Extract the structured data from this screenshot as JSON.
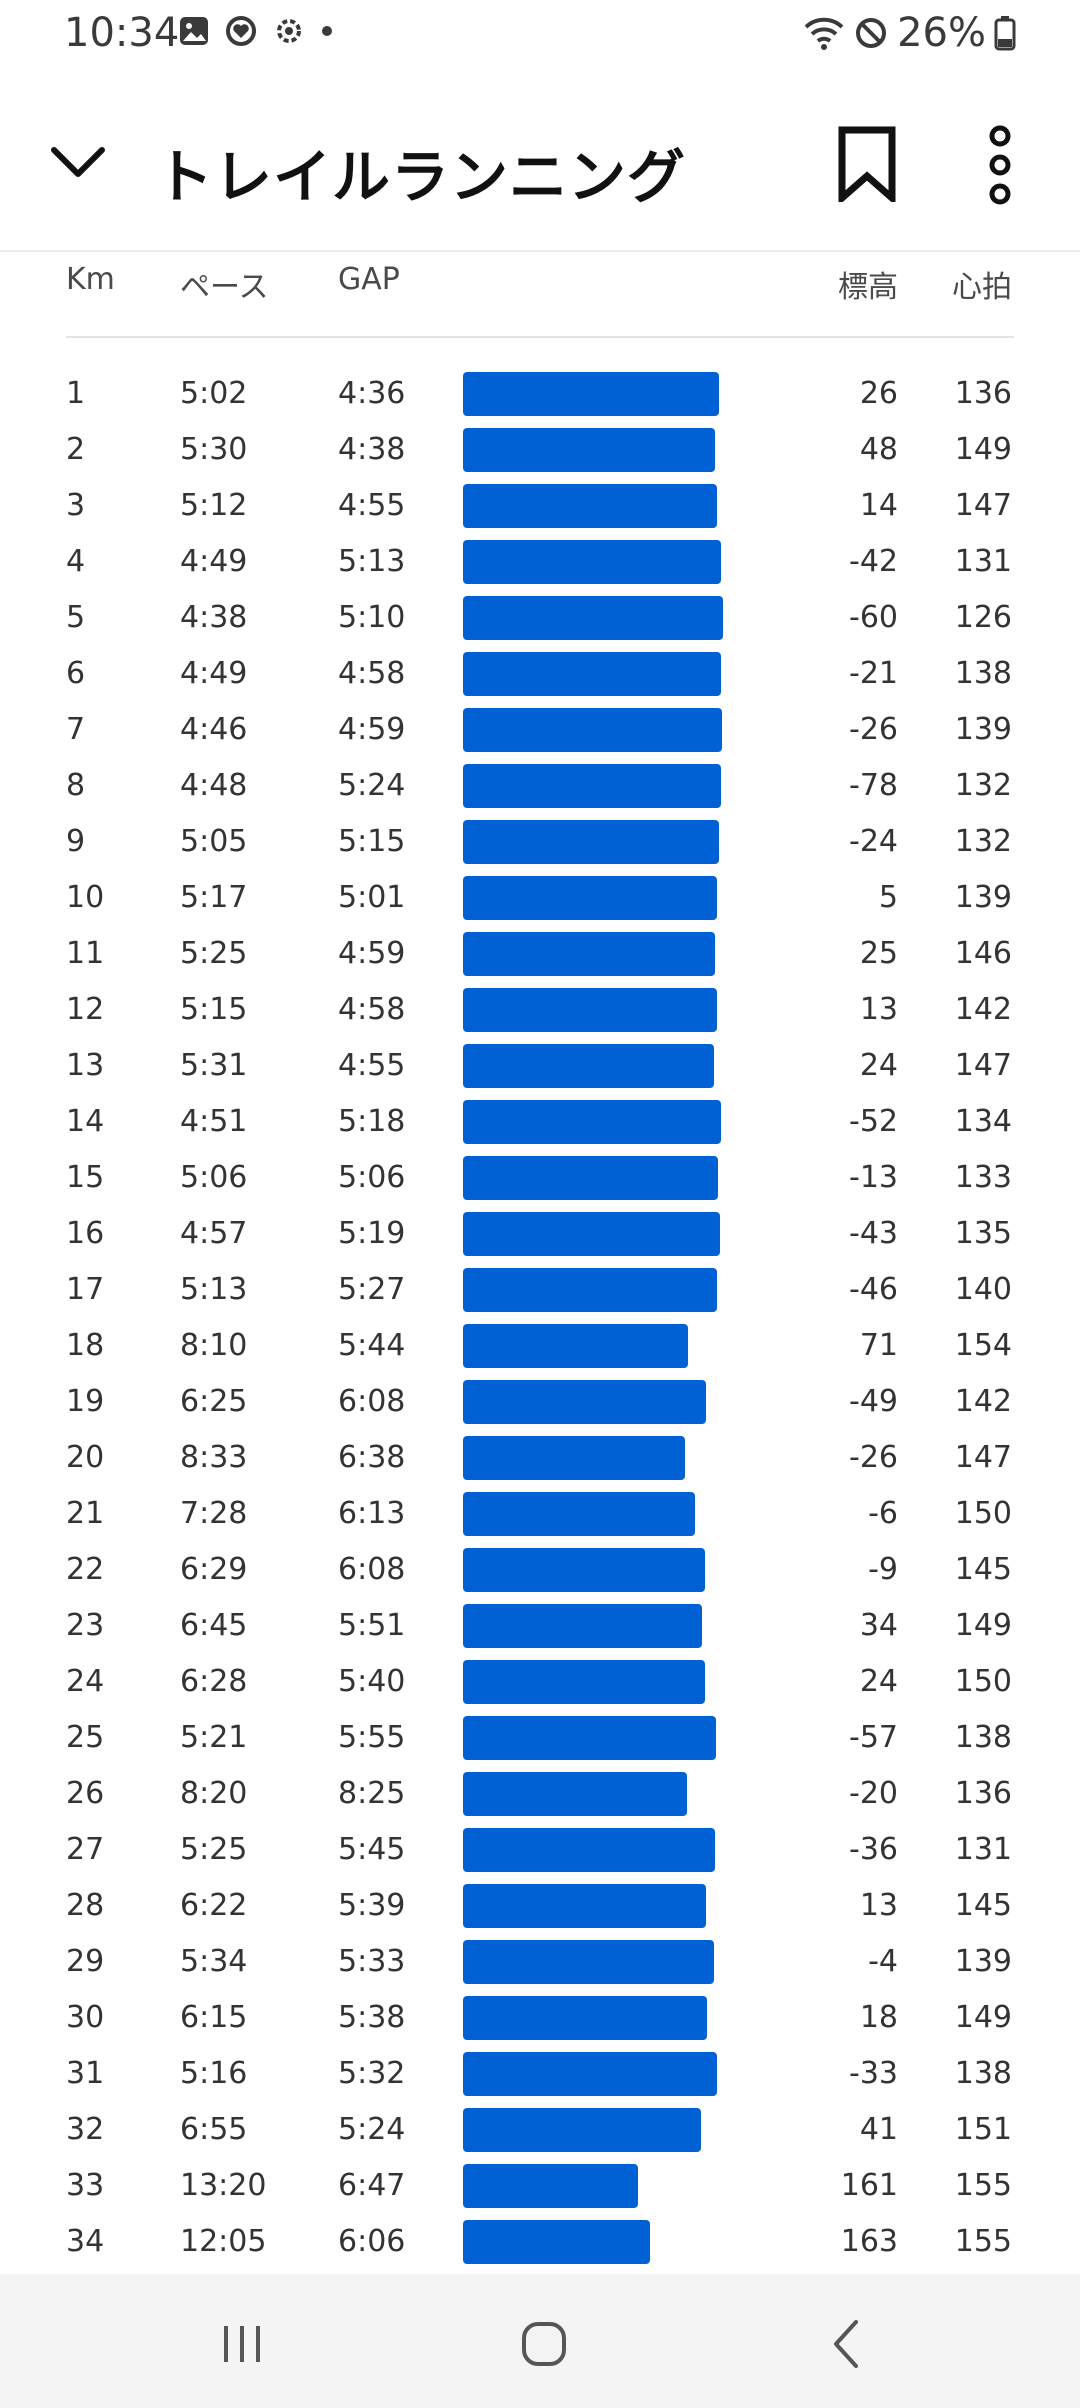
{
  "status": {
    "time": "10:34",
    "battery": "26%",
    "left_icons": [
      "gallery-icon",
      "heart-circle-icon",
      "settings-gear-icon",
      "dot-icon"
    ],
    "right_icons": [
      "wifi-icon",
      "do-not-disturb-icon",
      "battery-icon"
    ]
  },
  "app_bar": {
    "title": "トレイルランニング"
  },
  "table": {
    "headers": {
      "km": "Km",
      "pace": "ペース",
      "gap": "GAP",
      "elev": "標高",
      "hr": "心拍"
    },
    "rows": [
      {
        "km": "1",
        "pace": "5:02",
        "gap": "4:36",
        "elev": "26",
        "hr": "136"
      },
      {
        "km": "2",
        "pace": "5:30",
        "gap": "4:38",
        "elev": "48",
        "hr": "149"
      },
      {
        "km": "3",
        "pace": "5:12",
        "gap": "4:55",
        "elev": "14",
        "hr": "147"
      },
      {
        "km": "4",
        "pace": "4:49",
        "gap": "5:13",
        "elev": "-42",
        "hr": "131"
      },
      {
        "km": "5",
        "pace": "4:38",
        "gap": "5:10",
        "elev": "-60",
        "hr": "126"
      },
      {
        "km": "6",
        "pace": "4:49",
        "gap": "4:58",
        "elev": "-21",
        "hr": "138"
      },
      {
        "km": "7",
        "pace": "4:46",
        "gap": "4:59",
        "elev": "-26",
        "hr": "139"
      },
      {
        "km": "8",
        "pace": "4:48",
        "gap": "5:24",
        "elev": "-78",
        "hr": "132"
      },
      {
        "km": "9",
        "pace": "5:05",
        "gap": "5:15",
        "elev": "-24",
        "hr": "132"
      },
      {
        "km": "10",
        "pace": "5:17",
        "gap": "5:01",
        "elev": "5",
        "hr": "139"
      },
      {
        "km": "11",
        "pace": "5:25",
        "gap": "4:59",
        "elev": "25",
        "hr": "146"
      },
      {
        "km": "12",
        "pace": "5:15",
        "gap": "4:58",
        "elev": "13",
        "hr": "142"
      },
      {
        "km": "13",
        "pace": "5:31",
        "gap": "4:55",
        "elev": "24",
        "hr": "147"
      },
      {
        "km": "14",
        "pace": "4:51",
        "gap": "5:18",
        "elev": "-52",
        "hr": "134"
      },
      {
        "km": "15",
        "pace": "5:06",
        "gap": "5:06",
        "elev": "-13",
        "hr": "133"
      },
      {
        "km": "16",
        "pace": "4:57",
        "gap": "5:19",
        "elev": "-43",
        "hr": "135"
      },
      {
        "km": "17",
        "pace": "5:13",
        "gap": "5:27",
        "elev": "-46",
        "hr": "140"
      },
      {
        "km": "18",
        "pace": "8:10",
        "gap": "5:44",
        "elev": "71",
        "hr": "154"
      },
      {
        "km": "19",
        "pace": "6:25",
        "gap": "6:08",
        "elev": "-49",
        "hr": "142"
      },
      {
        "km": "20",
        "pace": "8:33",
        "gap": "6:38",
        "elev": "-26",
        "hr": "147"
      },
      {
        "km": "21",
        "pace": "7:28",
        "gap": "6:13",
        "elev": "-6",
        "hr": "150"
      },
      {
        "km": "22",
        "pace": "6:29",
        "gap": "6:08",
        "elev": "-9",
        "hr": "145"
      },
      {
        "km": "23",
        "pace": "6:45",
        "gap": "5:51",
        "elev": "34",
        "hr": "149"
      },
      {
        "km": "24",
        "pace": "6:28",
        "gap": "5:40",
        "elev": "24",
        "hr": "150"
      },
      {
        "km": "25",
        "pace": "5:21",
        "gap": "5:55",
        "elev": "-57",
        "hr": "138"
      },
      {
        "km": "26",
        "pace": "8:20",
        "gap": "8:25",
        "elev": "-20",
        "hr": "136"
      },
      {
        "km": "27",
        "pace": "5:25",
        "gap": "5:45",
        "elev": "-36",
        "hr": "131"
      },
      {
        "km": "28",
        "pace": "6:22",
        "gap": "5:39",
        "elev": "13",
        "hr": "145"
      },
      {
        "km": "29",
        "pace": "5:34",
        "gap": "5:33",
        "elev": "-4",
        "hr": "139"
      },
      {
        "km": "30",
        "pace": "6:15",
        "gap": "5:38",
        "elev": "18",
        "hr": "149"
      },
      {
        "km": "31",
        "pace": "5:16",
        "gap": "5:32",
        "elev": "-33",
        "hr": "138"
      },
      {
        "km": "32",
        "pace": "6:55",
        "gap": "5:24",
        "elev": "41",
        "hr": "151"
      },
      {
        "km": "33",
        "pace": "13:20",
        "gap": "6:47",
        "elev": "161",
        "hr": "155"
      },
      {
        "km": "34",
        "pace": "12:05",
        "gap": "6:06",
        "elev": "163",
        "hr": "155"
      }
    ],
    "bar_color": "#0061d5"
  },
  "nav": {
    "icons": [
      "recent-apps-icon",
      "home-icon",
      "back-icon"
    ]
  }
}
